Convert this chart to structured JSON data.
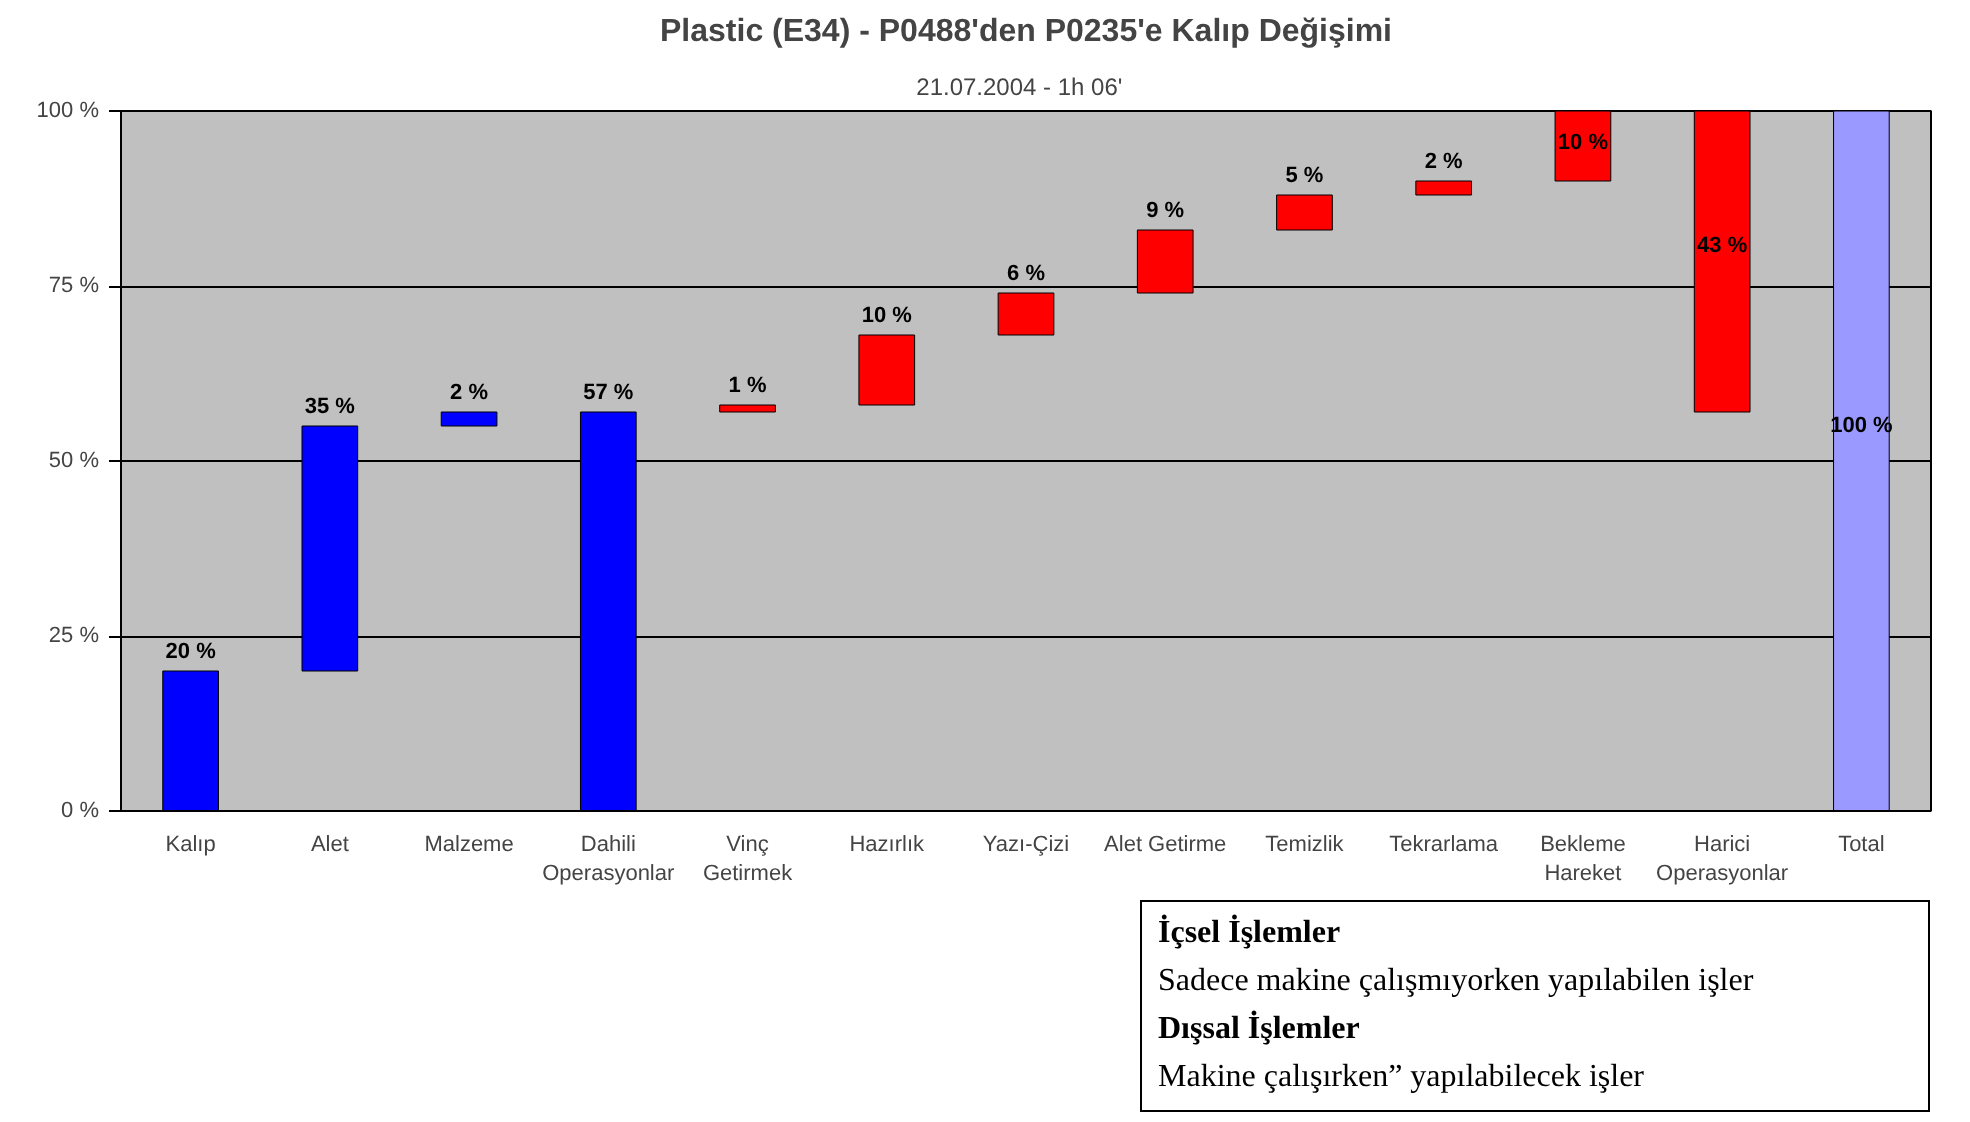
{
  "chart_data": {
    "type": "bar",
    "title": "Plastic (E34) - P0488'den P0235'e Kalıp Değişimi",
    "subtitle": "21.07.2004 -   1h 06'",
    "categories": [
      "Kalıp",
      "Alet",
      "Malzeme",
      "Dahili\nOperasyonlar",
      "Vinç\nGetirmek",
      "Hazırlık",
      "Yazı-Çizi",
      "Alet Getirme",
      "Temizlik",
      "Tekrarlama",
      "Bekleme\nHareket",
      "Harici\nOperasyonlar",
      "Total"
    ],
    "values": [
      20,
      35,
      2,
      57,
      1,
      10,
      6,
      9,
      5,
      2,
      10,
      43,
      100
    ],
    "base": [
      0,
      20,
      55,
      0,
      57,
      58,
      68,
      74,
      83,
      88,
      90,
      57,
      0
    ],
    "colors": [
      "#0000ff",
      "#0000ff",
      "#0000ff",
      "#0000ff",
      "#ff0000",
      "#ff0000",
      "#ff0000",
      "#ff0000",
      "#ff0000",
      "#ff0000",
      "#ff0000",
      "#ff0000",
      "#9999ff"
    ],
    "value_labels": [
      "20 %",
      "35 %",
      "2 %",
      "57 %",
      "1 %",
      "10 %",
      "6 %",
      "9 %",
      "5 %",
      "2 %",
      "10 %",
      "43 %",
      "100 %"
    ],
    "ylim": [
      0,
      100
    ],
    "yticks": [
      {
        "value": 0,
        "label": "0 %"
      },
      {
        "value": 25,
        "label": "25 %"
      },
      {
        "value": 50,
        "label": "50 %"
      },
      {
        "value": 75,
        "label": "75 %"
      },
      {
        "value": 100,
        "label": "100 %"
      }
    ],
    "grid": "y",
    "annotations": [
      "İçsel İşlemler",
      "Sadece makine çalışmıyorken yapılabilen işler",
      "Dışsal İşlemler",
      "Makine çalışırken” yapılabilecek işler"
    ]
  }
}
